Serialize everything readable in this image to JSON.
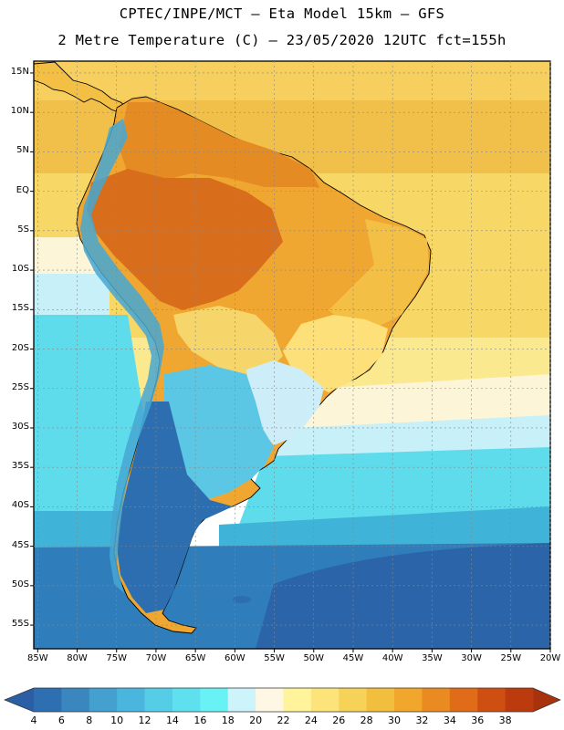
{
  "title": {
    "line1": "CPTEC/INPE/MCT –  Eta Model 15km – GFS",
    "line2": "2 Metre Temperature (C) – 23/05/2020 12UTC fct=155h"
  },
  "axes": {
    "lat_labels": [
      "15N",
      "10N",
      "5N",
      "EQ",
      "5S",
      "10S",
      "15S",
      "20S",
      "25S",
      "30S",
      "35S",
      "40S",
      "45S",
      "50S",
      "55S"
    ],
    "lat_values": [
      15,
      10,
      5,
      0,
      -5,
      -10,
      -15,
      -20,
      -25,
      -30,
      -35,
      -40,
      -45,
      -50,
      -55
    ],
    "lon_labels": [
      "85W",
      "80W",
      "75W",
      "70W",
      "65W",
      "60W",
      "55W",
      "50W",
      "45W",
      "40W",
      "35W",
      "30W",
      "25W",
      "20W"
    ],
    "lon_values": [
      -85,
      -80,
      -75,
      -70,
      -65,
      -60,
      -55,
      -50,
      -45,
      -40,
      -35,
      -30,
      -25,
      -20
    ],
    "lat_range": [
      -58,
      16.5
    ],
    "lon_range": [
      -85.5,
      -20
    ]
  },
  "colorbar": {
    "labels": [
      "4",
      "6",
      "8",
      "10",
      "12",
      "14",
      "16",
      "18",
      "20",
      "22",
      "24",
      "26",
      "28",
      "30",
      "32",
      "34",
      "36",
      "38"
    ],
    "colors": [
      "#2d6fb0",
      "#3a86bf",
      "#44a0cf",
      "#4bb6dd",
      "#56cde6",
      "#5ee0ee",
      "#68f2f6",
      "#cdf3fb",
      "#fdf7e3",
      "#fff39c",
      "#fde47a",
      "#f7d259",
      "#f1be3e",
      "#f0a72b",
      "#ea8b21",
      "#e06c1a",
      "#cf4f12",
      "#bb3a0e"
    ],
    "low_color": "#2a5fa6",
    "high_color": "#a8320c"
  },
  "map": {
    "ocean_colors": {
      "north_tropical": "#f6cf5e",
      "north_warm": "#f1c04a",
      "equatorial": "#f7d766",
      "subtropical": "#fbe98f",
      "mid": "#fdf5d8",
      "cool": "#c7f0f8",
      "cold": "#5fdcec",
      "colder": "#3fb4d8",
      "south": "#2f7dba",
      "deep_south": "#2b64a8"
    },
    "land_colors": {
      "amazon": "#d86d1b",
      "north": "#e58b24",
      "interior": "#f0a731",
      "east": "#f3bf44",
      "southeast": "#fde07a",
      "south_brazil": "#cdeef8",
      "chaco": "#f6d56a",
      "andes": "#45a7d3",
      "patagonia": "#2d6eb0",
      "pampas": "#5cc7e4"
    }
  }
}
